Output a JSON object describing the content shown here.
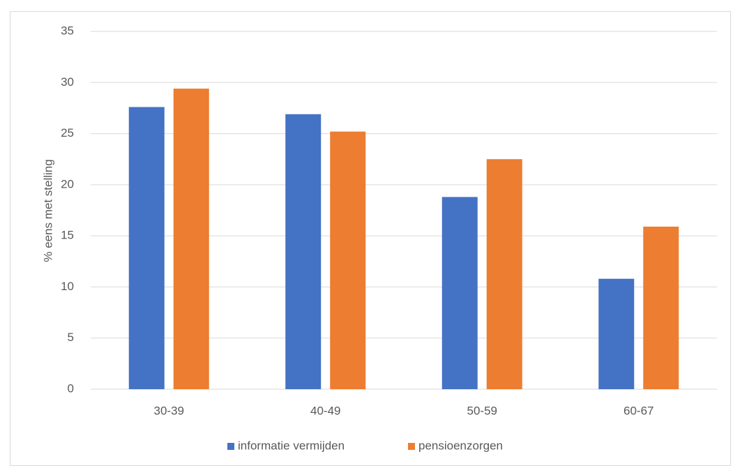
{
  "chart_data": {
    "type": "bar",
    "title": "",
    "xlabel": "",
    "ylabel": "% eens met stelling",
    "ylim": [
      0,
      35
    ],
    "yticks": [
      0,
      5,
      10,
      15,
      20,
      25,
      30,
      35
    ],
    "categories": [
      "30-39",
      "40-49",
      "50-59",
      "60-67"
    ],
    "grid": true,
    "legend_position": "bottom",
    "series": [
      {
        "name": "informatie vermijden",
        "color": "#4472C4",
        "values": [
          27.6,
          26.9,
          18.8,
          10.8
        ]
      },
      {
        "name": "pensioenzorgen",
        "color": "#ED7D31",
        "values": [
          29.4,
          25.2,
          22.5,
          15.9
        ]
      }
    ]
  }
}
